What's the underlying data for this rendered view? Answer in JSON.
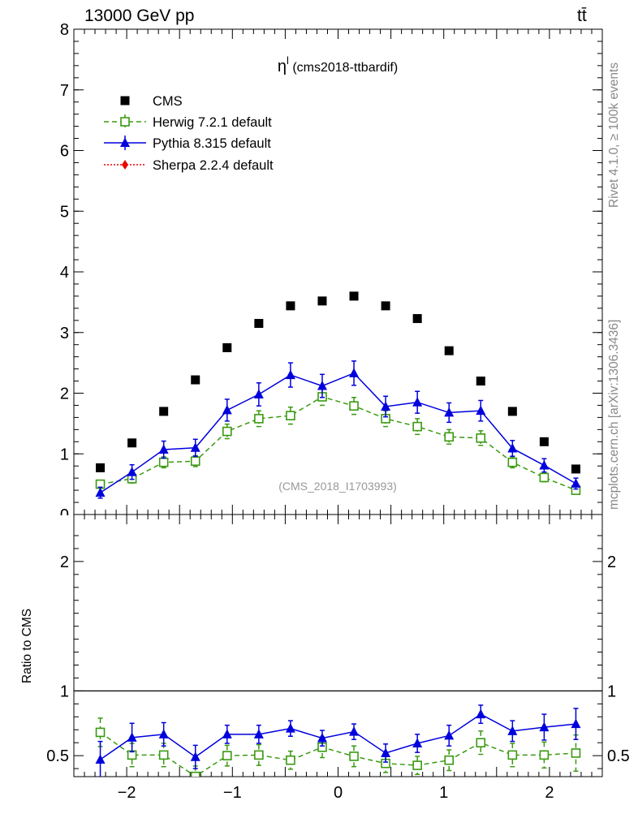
{
  "header": {
    "energy_label": "13000 GeV pp",
    "process_label": "tt̄"
  },
  "side_labels": {
    "rivet": "Rivet 4.1.0, ≥ 100k events",
    "mcplots": "mcplots.cern.ch [arXiv:1306.3436]"
  },
  "colors": {
    "cms": "#000000",
    "herwig": "#3a9a10",
    "pythia": "#0000dd",
    "sherpa": "#ee0000",
    "watermark": "#999999"
  },
  "chart_data": [
    {
      "type": "scatter",
      "title": "η",
      "title_sup": "l",
      "title_suffix": "(cms2018-ttbardif)",
      "watermark": "(CMS_2018_I1703993)",
      "xlim": [
        -2.5,
        2.5
      ],
      "ylim": [
        0,
        8
      ],
      "y_ticks": [
        0,
        1,
        2,
        3,
        4,
        5,
        6,
        7,
        8
      ],
      "y_tick_labels": [
        "0",
        "1",
        "2",
        "3",
        "4",
        "5",
        "6",
        "7",
        "8"
      ],
      "x": [
        -2.25,
        -1.95,
        -1.65,
        -1.35,
        -1.05,
        -0.75,
        -0.45,
        -0.15,
        0.15,
        0.45,
        0.75,
        1.05,
        1.35,
        1.65,
        1.95,
        2.25
      ],
      "legend_position": "top-left",
      "series": [
        {
          "name": "CMS",
          "marker": "square-filled",
          "values": [
            0.77,
            1.18,
            1.7,
            2.22,
            2.75,
            3.15,
            3.44,
            3.52,
            3.6,
            3.44,
            3.23,
            2.7,
            2.2,
            1.7,
            1.2,
            0.75
          ]
        },
        {
          "name": "Herwig 7.2.1 default",
          "marker": "square-open",
          "line": "dashed",
          "values": [
            0.5,
            0.59,
            0.86,
            0.88,
            1.37,
            1.58,
            1.63,
            1.94,
            1.79,
            1.58,
            1.45,
            1.28,
            1.26,
            0.86,
            0.61,
            0.4
          ],
          "errors": [
            0.06,
            0.07,
            0.09,
            0.09,
            0.12,
            0.13,
            0.14,
            0.14,
            0.14,
            0.13,
            0.13,
            0.12,
            0.12,
            0.09,
            0.07,
            0.06
          ]
        },
        {
          "name": "Pythia 8.315 default",
          "marker": "triangle-filled",
          "line": "solid",
          "values": [
            0.36,
            0.7,
            1.07,
            1.1,
            1.72,
            1.98,
            2.3,
            2.12,
            2.33,
            1.78,
            1.85,
            1.68,
            1.71,
            1.09,
            0.81,
            0.51
          ],
          "errors": [
            0.09,
            0.12,
            0.14,
            0.14,
            0.18,
            0.19,
            0.2,
            0.19,
            0.2,
            0.17,
            0.18,
            0.16,
            0.17,
            0.13,
            0.11,
            0.09
          ]
        },
        {
          "name": "Sherpa 2.2.4 default",
          "marker": "diamond-filled",
          "line": "dotted",
          "values": []
        }
      ]
    },
    {
      "type": "scatter",
      "ylabel": "Ratio to CMS",
      "xlim": [
        -2.5,
        2.5
      ],
      "ylim": [
        0.338,
        2.363
      ],
      "y_ticks": [
        0.5,
        1,
        2
      ],
      "y_tick_labels": [
        "0.5",
        "1",
        "2"
      ],
      "x_ticks": [
        -2,
        -1,
        0,
        1,
        2
      ],
      "x_tick_labels": [
        "−2",
        "−1",
        "0",
        "1",
        "2"
      ],
      "reference": 1,
      "x": [
        -2.25,
        -1.95,
        -1.65,
        -1.35,
        -1.05,
        -0.75,
        -0.45,
        -0.15,
        0.15,
        0.45,
        0.75,
        1.05,
        1.35,
        1.65,
        1.95,
        2.25
      ],
      "series": [
        {
          "name": "Herwig 7.2.1 default",
          "marker": "square-open",
          "line": "dashed",
          "values": [
            0.68,
            0.505,
            0.505,
            0.34,
            0.5,
            0.505,
            0.465,
            0.565,
            0.495,
            0.44,
            0.425,
            0.465,
            0.6,
            0.505,
            0.505,
            0.52
          ],
          "errors": [
            0.11,
            0.09,
            0.09,
            0.08,
            0.08,
            0.08,
            0.07,
            0.08,
            0.08,
            0.07,
            0.07,
            0.08,
            0.09,
            0.09,
            0.1,
            0.14
          ]
        },
        {
          "name": "Pythia 8.315 default",
          "marker": "triangle-filled",
          "line": "solid",
          "values": [
            0.47,
            0.64,
            0.665,
            0.49,
            0.665,
            0.665,
            0.71,
            0.635,
            0.685,
            0.52,
            0.595,
            0.655,
            0.82,
            0.69,
            0.72,
            0.745
          ],
          "errors": [
            0.14,
            0.11,
            0.09,
            0.09,
            0.07,
            0.07,
            0.06,
            0.06,
            0.06,
            0.07,
            0.07,
            0.08,
            0.07,
            0.08,
            0.1,
            0.12
          ]
        }
      ]
    }
  ]
}
